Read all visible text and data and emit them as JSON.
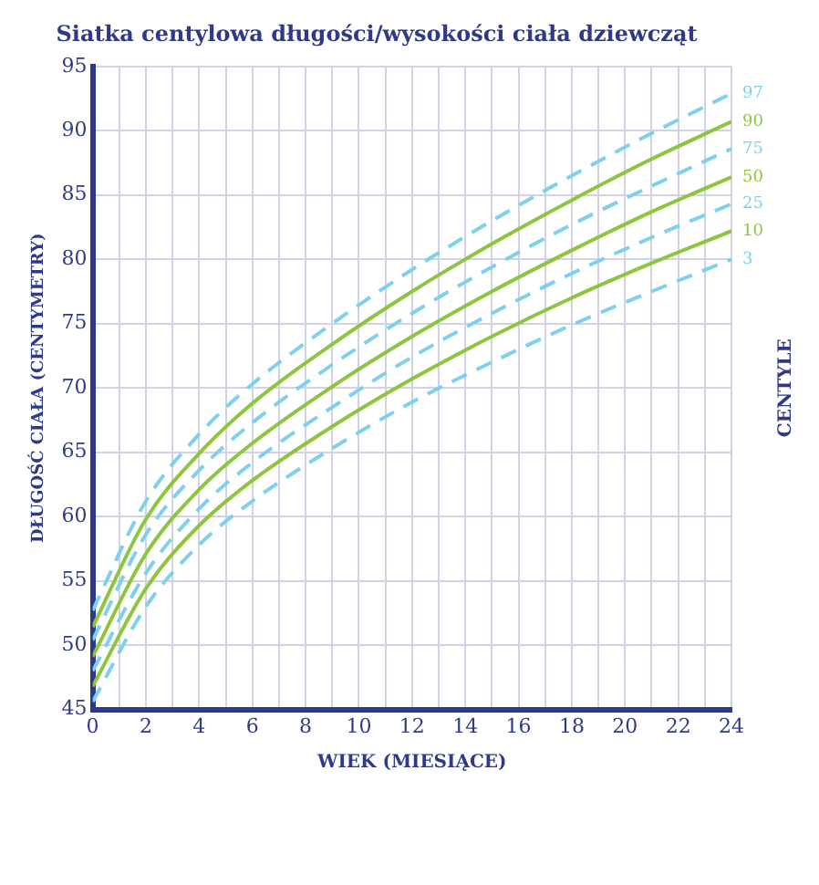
{
  "chart_data": {
    "type": "line",
    "title": "Siatka centylowa długości/wysokości ciała dziewcząt",
    "xlabel": "WIEK (MIESIĄCE)",
    "ylabel": "DŁUGOŚĆ CIAŁA (CENTYMETRY)",
    "legend_title": "CENTYLE",
    "x": [
      0,
      2,
      4,
      6,
      9,
      12,
      15,
      18,
      21,
      24
    ],
    "series": [
      {
        "name": "97",
        "color": "#7fd0ee",
        "line_style": "dashed",
        "values": [
          52.7,
          61.2,
          66.4,
          70.3,
          75.0,
          79.2,
          83.0,
          86.5,
          89.8,
          92.9
        ]
      },
      {
        "name": "90",
        "color": "#8cc63f",
        "line_style": "solid",
        "values": [
          51.4,
          59.8,
          64.9,
          68.8,
          73.4,
          77.5,
          81.2,
          84.6,
          87.8,
          90.7
        ]
      },
      {
        "name": "75",
        "color": "#7fd0ee",
        "line_style": "dashed",
        "values": [
          50.4,
          58.6,
          63.6,
          67.3,
          71.8,
          75.8,
          79.4,
          82.7,
          85.7,
          88.6
        ]
      },
      {
        "name": "50",
        "color": "#8cc63f",
        "line_style": "solid",
        "values": [
          49.1,
          57.1,
          62.1,
          65.7,
          70.1,
          74.0,
          77.5,
          80.7,
          83.7,
          86.4
        ]
      },
      {
        "name": "25",
        "color": "#7fd0ee",
        "line_style": "dashed",
        "values": [
          48.0,
          55.6,
          60.6,
          64.2,
          68.5,
          72.4,
          75.8,
          78.9,
          81.7,
          84.3
        ]
      },
      {
        "name": "10",
        "color": "#8cc63f",
        "line_style": "solid",
        "values": [
          46.8,
          54.4,
          59.3,
          62.8,
          67.0,
          70.7,
          74.0,
          77.0,
          79.7,
          82.2
        ]
      },
      {
        "name": "3",
        "color": "#7fd0ee",
        "line_style": "dashed",
        "values": [
          45.6,
          53.0,
          57.8,
          61.2,
          65.3,
          68.9,
          72.0,
          74.9,
          77.5,
          80.0
        ]
      }
    ],
    "xlim": [
      0,
      24
    ],
    "xticks": [
      0,
      {
        "value": 1,
        "label": null
      },
      2,
      {
        "value": 3,
        "label": null
      },
      4,
      {
        "value": 5,
        "label": null
      },
      6,
      {
        "value": 7,
        "label": null
      },
      8,
      {
        "value": 9,
        "label": null
      },
      10,
      {
        "value": 11,
        "label": null
      },
      12,
      {
        "value": 13,
        "label": null
      },
      14,
      {
        "value": 15,
        "label": null
      },
      16,
      {
        "value": 17,
        "label": null
      },
      18,
      {
        "value": 19,
        "label": null
      },
      20,
      {
        "value": 21,
        "label": null
      },
      22,
      {
        "value": 23,
        "label": null
      },
      24
    ],
    "ylim": [
      45,
      95
    ],
    "yticks": [
      45,
      50,
      55,
      60,
      65,
      70,
      75,
      80,
      85,
      90,
      95
    ],
    "grid": true,
    "legend": false,
    "marker": "none"
  }
}
